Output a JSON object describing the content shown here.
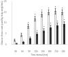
{
  "chart_data": {
    "type": "bar",
    "categories": [
      "30",
      "60",
      "90",
      "120",
      "150",
      "180",
      "210",
      "240"
    ],
    "series": [
      {
        "color": "#ffffff",
        "values": [
          2.0,
          4.5,
          8.5,
          12.0,
          14.0,
          15.0,
          15.5,
          15.0
        ],
        "errors": [
          0.5,
          0.8,
          1.0,
          1.1,
          1.2,
          1.2,
          1.3,
          1.2
        ],
        "annotations": [
          null,
          null,
          "*",
          "*",
          "*",
          "*",
          "*",
          "*"
        ]
      },
      {
        "color": "#1a1a1a",
        "values": [
          0.5,
          1.2,
          3.0,
          5.0,
          6.5,
          8.0,
          9.0,
          9.5
        ],
        "errors": [
          0.15,
          0.3,
          0.5,
          0.7,
          0.9,
          1.0,
          1.1,
          1.1
        ],
        "annotations": [
          null,
          null,
          null,
          "*",
          "*",
          "*",
          "*",
          "*"
        ]
      }
    ],
    "xlabel": "Time interval (min)",
    "ylabel": "Glucose infusion rate (µmol/kg body weight/min)",
    "ylim": [
      0,
      20
    ],
    "yticks": [
      0,
      5,
      10,
      15,
      20
    ],
    "grid": false
  }
}
